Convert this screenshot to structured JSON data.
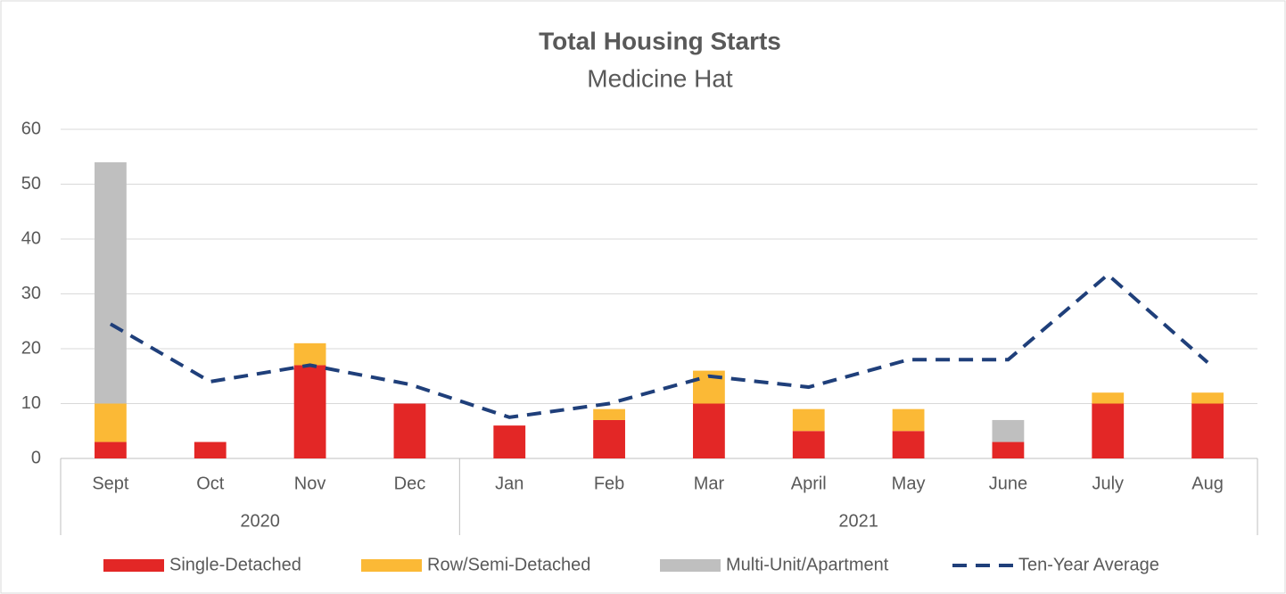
{
  "chart_data": {
    "type": "bar",
    "stacked": true,
    "title": "Total Housing Starts",
    "subtitle": "Medicine Hat",
    "categories": [
      "Sept",
      "Oct",
      "Nov",
      "Dec",
      "Jan",
      "Feb",
      "Mar",
      "April",
      "May",
      "June",
      "July",
      "Aug"
    ],
    "x_groups": [
      {
        "label": "2020",
        "count": 4
      },
      {
        "label": "2021",
        "count": 8
      }
    ],
    "series": [
      {
        "name": "Single-Detached",
        "color": "#e32726",
        "values": [
          3,
          3,
          17,
          10,
          6,
          7,
          10,
          5,
          5,
          3,
          10,
          10
        ]
      },
      {
        "name": "Row/Semi-Detached",
        "color": "#fbb936",
        "values": [
          7,
          0,
          4,
          0,
          0,
          2,
          6,
          4,
          4,
          0,
          2,
          2
        ]
      },
      {
        "name": "Multi-Unit/Apartment",
        "color": "#bfbfbf",
        "values": [
          44,
          0,
          0,
          0,
          0,
          0,
          0,
          0,
          0,
          4,
          0,
          0
        ]
      },
      {
        "name": "Ten-Year Average",
        "color": "#1f3f7a",
        "type": "line",
        "dashed": true,
        "values": [
          24.5,
          14,
          17,
          13.5,
          7.5,
          10,
          15,
          13,
          18,
          18,
          33.5,
          17.5
        ]
      }
    ],
    "ylim": [
      0,
      60
    ],
    "yticks": [
      0,
      10,
      20,
      30,
      40,
      50,
      60
    ],
    "grid": true,
    "legend": "bottom"
  }
}
